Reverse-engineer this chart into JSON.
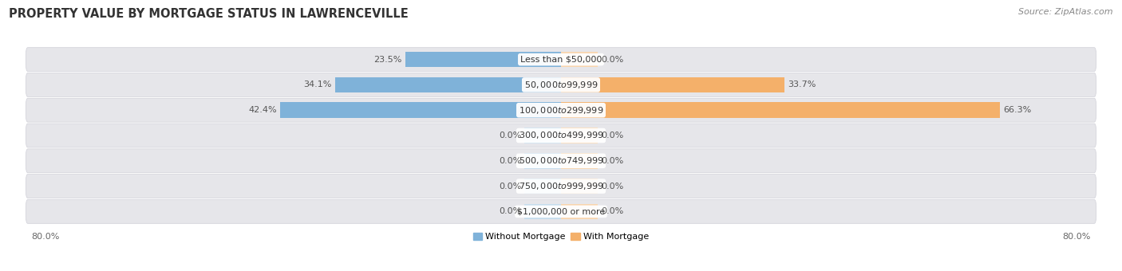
{
  "title": "PROPERTY VALUE BY MORTGAGE STATUS IN LAWRENCEVILLE",
  "source": "Source: ZipAtlas.com",
  "categories": [
    "Less than $50,000",
    "$50,000 to $99,999",
    "$100,000 to $299,999",
    "$300,000 to $499,999",
    "$500,000 to $749,999",
    "$750,000 to $999,999",
    "$1,000,000 or more"
  ],
  "without_mortgage": [
    23.5,
    34.1,
    42.4,
    0.0,
    0.0,
    0.0,
    0.0
  ],
  "with_mortgage": [
    0.0,
    33.7,
    66.3,
    0.0,
    0.0,
    0.0,
    0.0
  ],
  "color_without": "#7fb2d9",
  "color_with": "#f4b06a",
  "color_without_light": "#c5dced",
  "color_with_light": "#f8d5ae",
  "axis_min": -80.0,
  "axis_max": 80.0,
  "legend_without": "Without Mortgage",
  "legend_with": "With Mortgage",
  "bg_bar": "#e6e6ea",
  "bg_fig": "#ffffff",
  "title_fontsize": 10.5,
  "source_fontsize": 8,
  "label_fontsize": 8,
  "category_fontsize": 8,
  "bar_height": 0.62,
  "stub_size": 5.5,
  "row_rounding": 0.3
}
